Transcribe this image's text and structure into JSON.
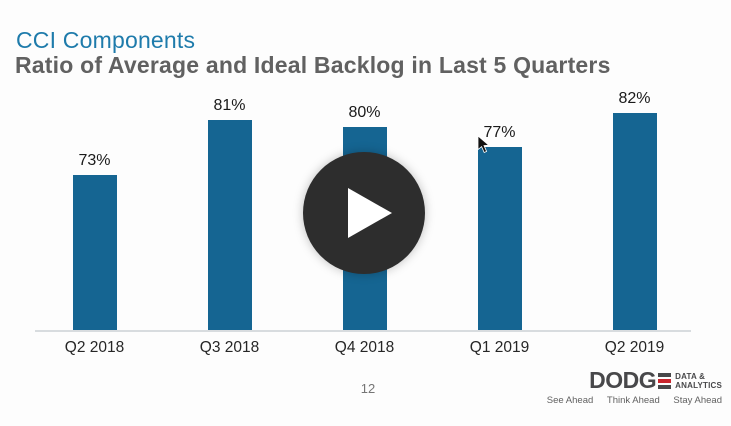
{
  "slide": {
    "title": "CCI Components",
    "subtitle": "Ratio of Average and Ideal Backlog in Last 5 Quarters"
  },
  "chart_data": {
    "type": "bar",
    "title": "Ratio of Average and Ideal Backlog in Last 5 Quarters",
    "categories": [
      "Q2 2018",
      "Q3 2018",
      "Q4 2018",
      "Q1 2019",
      "Q2 2019"
    ],
    "values": [
      73,
      81,
      80,
      77,
      82
    ],
    "value_labels": [
      "73%",
      "81%",
      "80%",
      "77%",
      "82%"
    ],
    "unit": "%",
    "xlabel": "",
    "ylabel": "",
    "grid": false,
    "legend": false,
    "bar_color": "#156592",
    "ylim": [
      50,
      84
    ]
  },
  "video": {
    "play_icon": "play"
  },
  "footer": {
    "page_number": "12",
    "logo": {
      "brand_text": "DODG",
      "brand_full": "DODGE",
      "suffix_line1": "DATA &",
      "suffix_line2": "ANALYTICS",
      "taglines": [
        "See Ahead",
        "Think Ahead",
        "Stay Ahead"
      ]
    }
  },
  "colors": {
    "title_blue": "#1e7bab",
    "subtitle_gray": "#616161",
    "bar_blue": "#156592",
    "axis_gray": "#d8dcdf",
    "overlay_dark": "#2d2d2d",
    "logo_charcoal": "#48484a",
    "logo_red": "#c9252d"
  }
}
